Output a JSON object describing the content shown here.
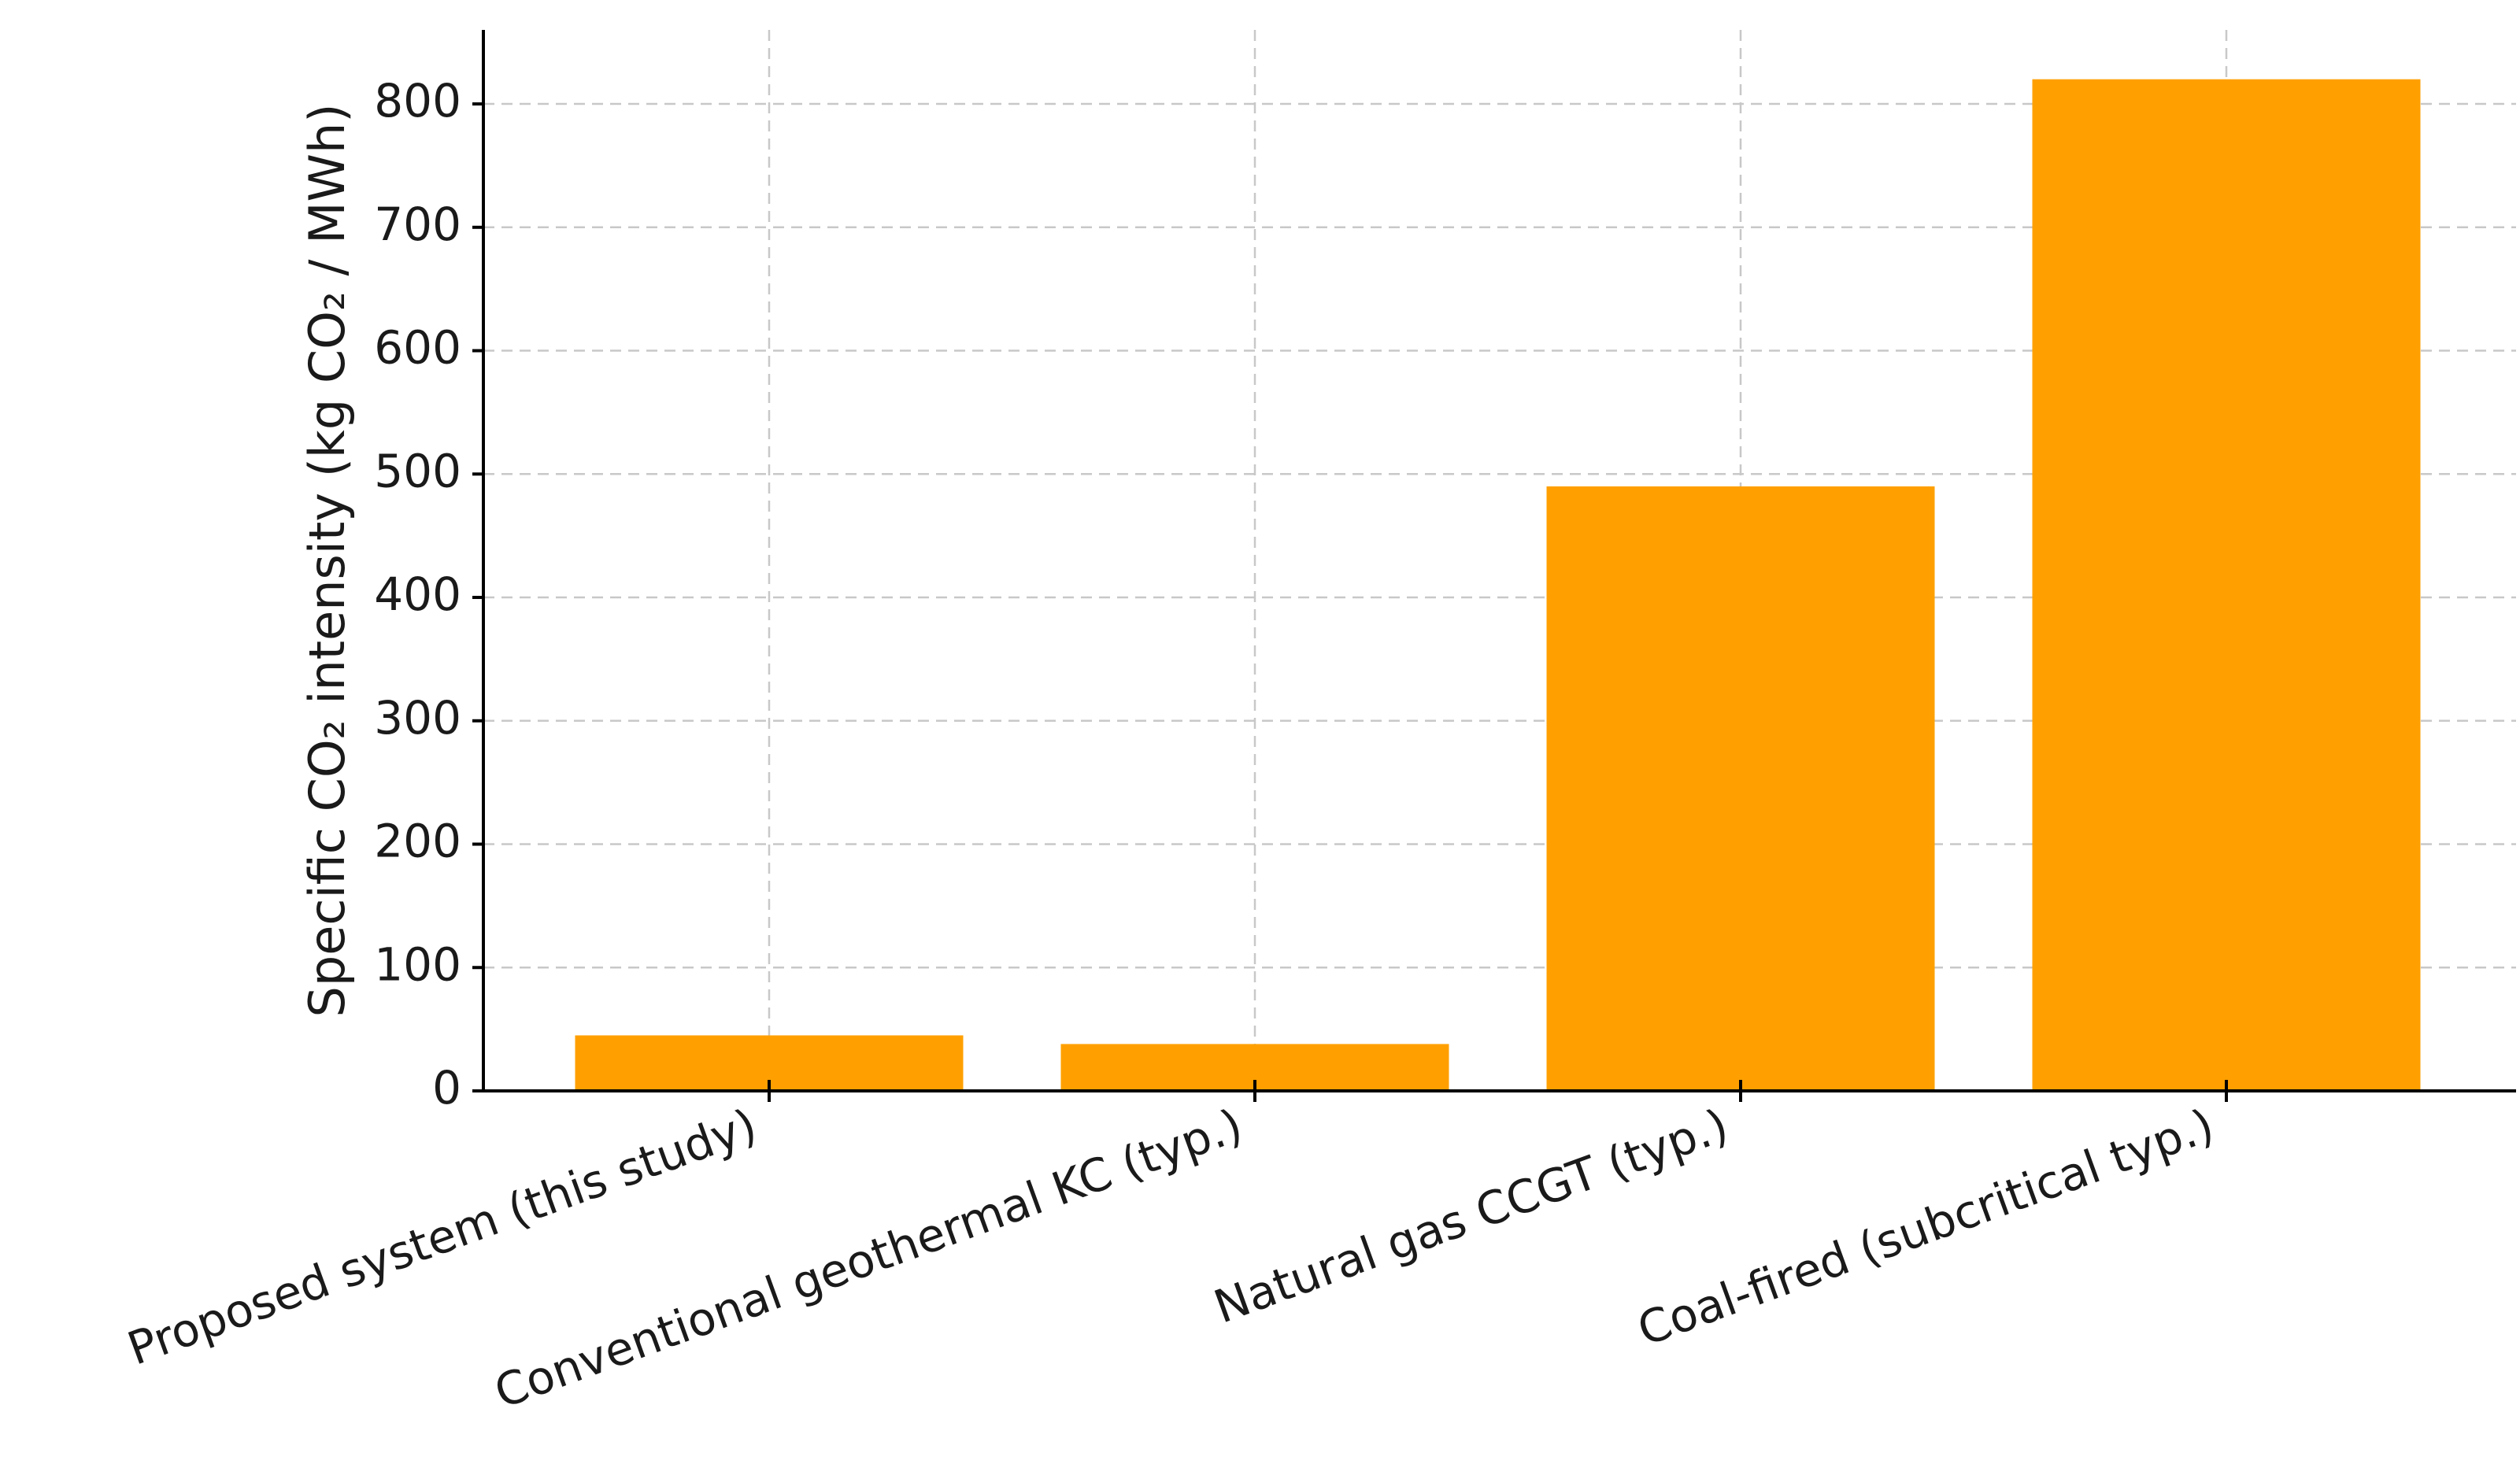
{
  "chart_data": {
    "type": "bar",
    "categories": [
      "Proposed system (this study)",
      "Conventional geothermal KC (typ.)",
      "Natural gas CCGT (typ.)",
      "Coal-fired (subcritical typ.)"
    ],
    "values": [
      45,
      38,
      490,
      820
    ],
    "title": "",
    "xlabel": "",
    "ylabel": "Specific CO₂ intensity (kg CO₂ / MWh)",
    "ylim": [
      0,
      860
    ],
    "yticks": [
      0,
      100,
      200,
      300,
      400,
      500,
      600,
      700,
      800
    ],
    "grid": true,
    "bar_color": "#ffa000",
    "legend": "none"
  }
}
